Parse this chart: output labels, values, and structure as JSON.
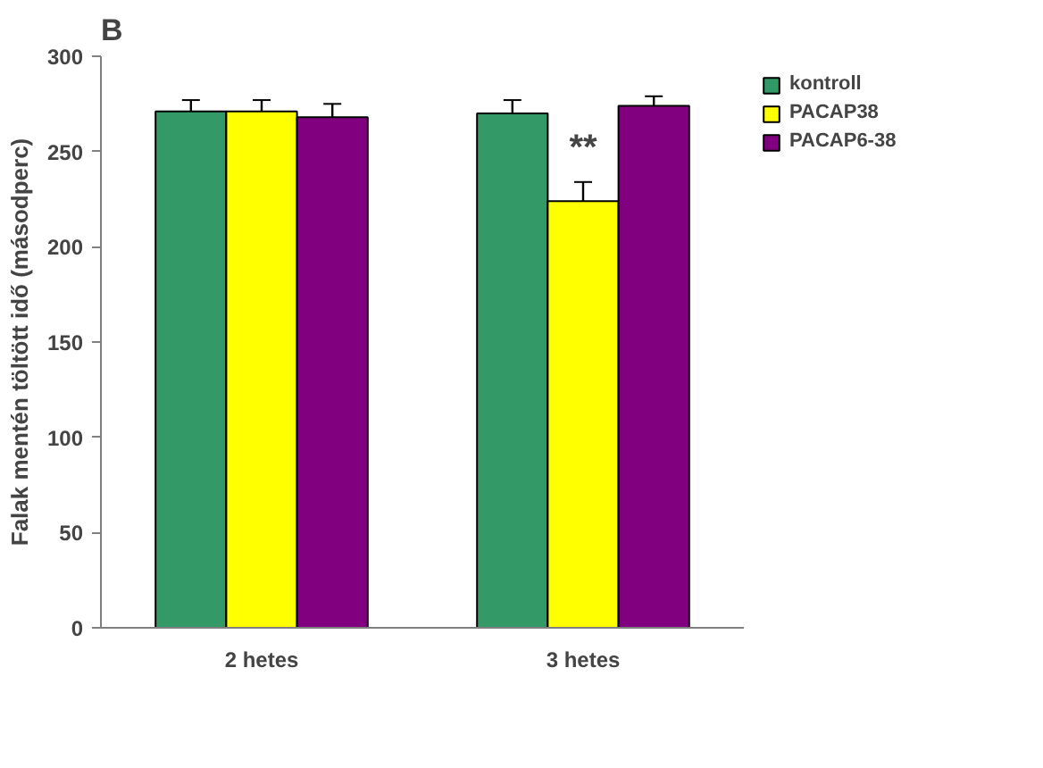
{
  "chart_data": {
    "type": "bar",
    "title": "B",
    "ylabel": "Falak mentén töltött idő (másodperc)",
    "categories": [
      "2 hetes",
      "3 hetes"
    ],
    "series": [
      {
        "name": "kontroll",
        "color": "#339966",
        "values": [
          271,
          270
        ],
        "errors": [
          6,
          7
        ]
      },
      {
        "name": "PACAP38",
        "color": "#ffff00",
        "values": [
          271,
          224
        ],
        "errors": [
          6,
          10
        ]
      },
      {
        "name": "PACAP6-38",
        "color": "#800080",
        "values": [
          268,
          274
        ],
        "errors": [
          7,
          5
        ]
      }
    ],
    "annotations": [
      "**"
    ],
    "ylim": [
      0,
      300
    ],
    "yticks": [
      0,
      50,
      100,
      150,
      200,
      250,
      300
    ],
    "grid": false,
    "legend": "top right"
  }
}
